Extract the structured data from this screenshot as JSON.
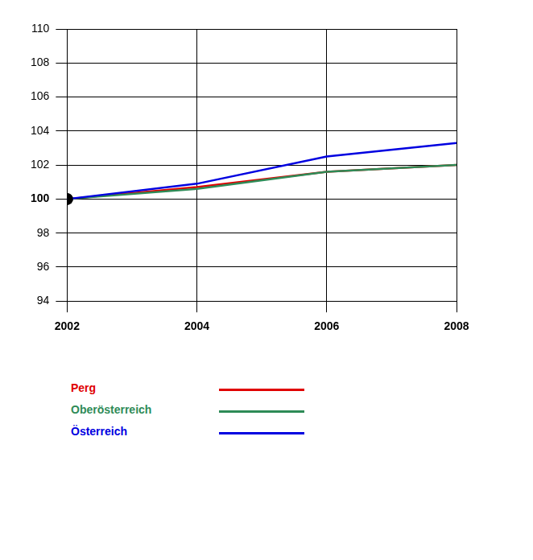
{
  "chart_data": {
    "type": "line",
    "x": [
      2002,
      2004,
      2006,
      2008
    ],
    "series": [
      {
        "name": "Perg",
        "color": "#e00000",
        "values": [
          100,
          100.7,
          101.6,
          102.0
        ]
      },
      {
        "name": "Oberösterreich",
        "color": "#2e8b57",
        "values": [
          100,
          100.6,
          101.6,
          102.0
        ]
      },
      {
        "name": "Österreich",
        "color": "#0000e0",
        "values": [
          100,
          100.9,
          102.5,
          103.3
        ]
      }
    ],
    "xlim": [
      2002,
      2008
    ],
    "xticks": [
      2002,
      2004,
      2006,
      2008
    ],
    "ylim": [
      94,
      110
    ],
    "yticks": [
      94,
      96,
      98,
      100,
      102,
      104,
      106,
      108,
      110
    ],
    "grid": true,
    "legend": "bottom"
  }
}
